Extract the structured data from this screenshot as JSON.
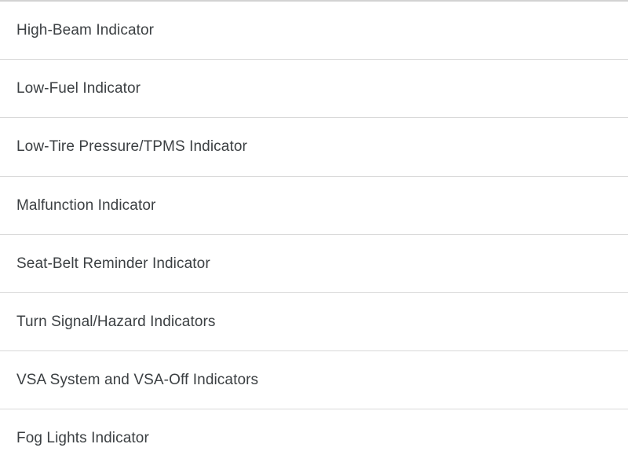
{
  "list": {
    "items": [
      {
        "label": "High-Beam Indicator"
      },
      {
        "label": "Low-Fuel Indicator"
      },
      {
        "label": "Low-Tire Pressure/TPMS Indicator"
      },
      {
        "label": "Malfunction Indicator"
      },
      {
        "label": "Seat-Belt Reminder Indicator"
      },
      {
        "label": "Turn Signal/Hazard Indicators"
      },
      {
        "label": "VSA System and VSA-Off Indicators"
      },
      {
        "label": "Fog Lights Indicator"
      }
    ]
  },
  "colors": {
    "background": "#ffffff",
    "text": "#3c4043",
    "divider": "#d9d9d9"
  }
}
